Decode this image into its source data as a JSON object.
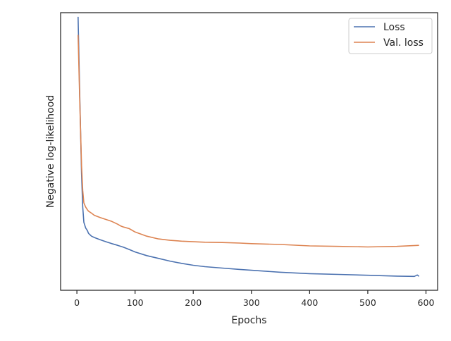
{
  "chart_data": {
    "type": "line",
    "title": "",
    "xlabel": "Epochs",
    "ylabel": "Negative log-likelihood",
    "xlim": [
      -28,
      620
    ],
    "xticks": [
      0,
      100,
      200,
      300,
      400,
      500,
      600
    ],
    "ylim": [
      0,
      1
    ],
    "show_y_tick_labels": false,
    "grid": false,
    "legend_position": "upper right",
    "series": [
      {
        "name": "Loss",
        "color": "#4c72b0",
        "x": [
          2,
          5,
          8,
          10,
          12,
          15,
          18,
          20,
          25,
          30,
          40,
          50,
          60,
          70,
          80,
          90,
          100,
          120,
          140,
          160,
          180,
          200,
          220,
          250,
          280,
          300,
          350,
          400,
          450,
          500,
          550,
          580,
          585,
          588
        ],
        "y": [
          0.985,
          0.7,
          0.42,
          0.3,
          0.245,
          0.225,
          0.215,
          0.205,
          0.195,
          0.19,
          0.182,
          0.175,
          0.168,
          0.162,
          0.155,
          0.147,
          0.138,
          0.125,
          0.115,
          0.105,
          0.097,
          0.09,
          0.085,
          0.08,
          0.075,
          0.072,
          0.065,
          0.06,
          0.057,
          0.054,
          0.051,
          0.05,
          0.055,
          0.05
        ]
      },
      {
        "name": "Val. loss",
        "color": "#dd8452",
        "x": [
          2,
          5,
          8,
          10,
          12,
          15,
          18,
          20,
          25,
          30,
          40,
          50,
          60,
          70,
          75,
          80,
          90,
          100,
          120,
          140,
          160,
          180,
          200,
          220,
          250,
          280,
          300,
          350,
          400,
          450,
          500,
          550,
          588
        ],
        "y": [
          0.92,
          0.68,
          0.45,
          0.36,
          0.315,
          0.3,
          0.29,
          0.285,
          0.278,
          0.27,
          0.262,
          0.255,
          0.248,
          0.238,
          0.232,
          0.228,
          0.222,
          0.21,
          0.195,
          0.185,
          0.18,
          0.177,
          0.175,
          0.173,
          0.172,
          0.17,
          0.168,
          0.165,
          0.16,
          0.158,
          0.156,
          0.158,
          0.162
        ]
      }
    ]
  }
}
